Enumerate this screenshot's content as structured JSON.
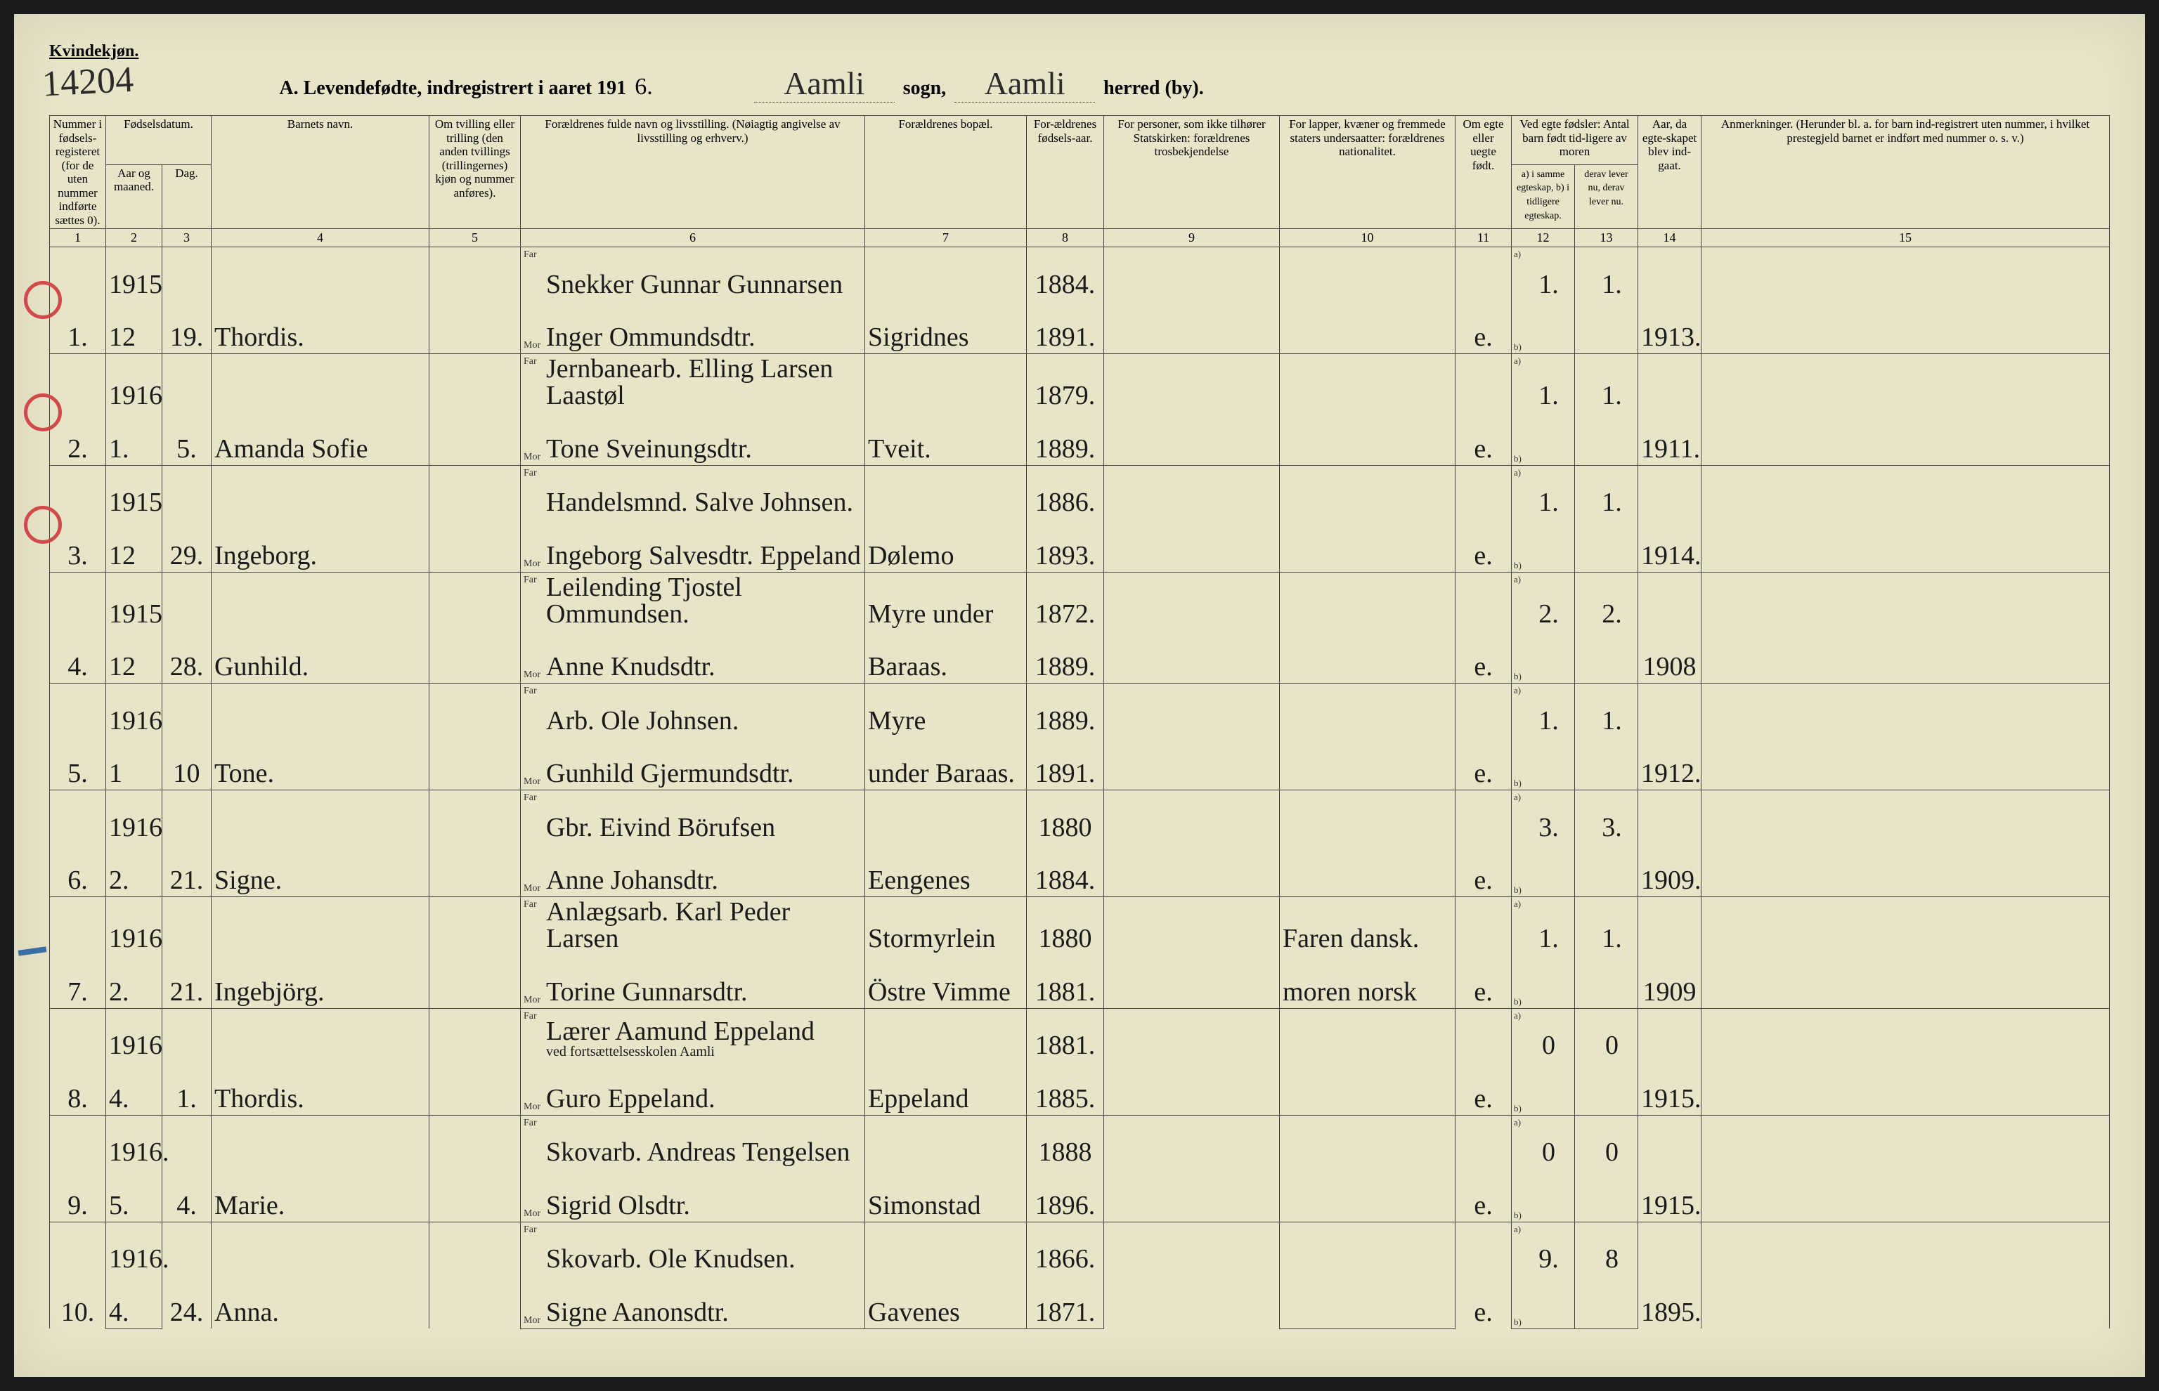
{
  "header": {
    "gender_label": "Kvindekjøn.",
    "handwritten_number": "14204",
    "title_prefix": "A.  Levendefødte, indregistrert i aaret 191",
    "year_suffix": "6.",
    "sogn_value": "Aamli",
    "sogn_label": "sogn,",
    "herred_value": "Aamli",
    "herred_label": "herred (by)."
  },
  "columns": {
    "c1": "Nummer i fødsels-registeret (for de uten nummer indførte sættes 0).",
    "c2_top": "Fødselsdatum.",
    "c2a": "Aar og maaned.",
    "c2b": "Dag.",
    "c4": "Barnets navn.",
    "c5": "Om tvilling eller trilling (den anden tvillings (trillingernes) kjøn og nummer anføres).",
    "c6": "Forældrenes fulde navn og livsstilling. (Nøiagtig angivelse av livsstilling og erhverv.)",
    "c7": "Forældrenes bopæl.",
    "c8": "For-ældrenes fødsels-aar.",
    "c9": "For personer, som ikke tilhører Statskirken: forældrenes trosbekjendelse",
    "c10": "For lapper, kvæner og fremmede staters undersaatter: forældrenes nationalitet.",
    "c11": "Om egte eller uegte født.",
    "c12_top": "Ved egte fødsler: Antal barn født tid-ligere av moren",
    "c12a": "a) i samme egteskap, b) i tidligere egteskap.",
    "c12b": "derav lever nu, derav lever nu.",
    "c14": "Aar, da egte-skapet blev ind-gaat.",
    "c15": "Anmerkninger. (Herunder bl. a. for barn ind-registrert uten nummer, i hvilket prestegjeld barnet er indført med nummer o. s. v.)",
    "far": "Far",
    "mor": "Mor",
    "a": "a)",
    "b": "b)",
    "nums": [
      "1",
      "2",
      "3",
      "4",
      "5",
      "6",
      "7",
      "8",
      "9",
      "10",
      "11",
      "12",
      "13",
      "14",
      "15"
    ]
  },
  "rows": [
    {
      "num": "1.",
      "year": "1915",
      "month": "12",
      "day": "19.",
      "name": "Thordis.",
      "far": "Snekker Gunnar Gunnarsen",
      "mor": "Inger Ommundsdtr.",
      "bopel": "Sigridnes",
      "far_aar": "1884.",
      "mor_aar": "1891.",
      "egte": "e.",
      "a": "1.",
      "b": "1.",
      "marriage": "1913.",
      "circle": true
    },
    {
      "num": "2.",
      "year": "1916",
      "month": "1.",
      "day": "5.",
      "name": "Amanda Sofie",
      "far": "Jernbanearb. Elling Larsen Laastøl",
      "mor": "Tone Sveinungsdtr.",
      "bopel": "Tveit.",
      "far_aar": "1879.",
      "mor_aar": "1889.",
      "egte": "e.",
      "a": "1.",
      "b": "1.",
      "marriage": "1911."
    },
    {
      "num": "3.",
      "year": "1915",
      "month": "12",
      "day": "29.",
      "name": "Ingeborg.",
      "far": "Handelsmnd. Salve Johnsen.",
      "mor": "Ingeborg Salvesdtr. Eppeland",
      "bopel": "Dølemo",
      "far_aar": "1886.",
      "mor_aar": "1893.",
      "egte": "e.",
      "a": "1.",
      "b": "1.",
      "marriage": "1914.",
      "circle": true
    },
    {
      "num": "4.",
      "year": "1915",
      "month": "12",
      "day": "28.",
      "name": "Gunhild.",
      "far": "Leilending Tjostel Ommundsen.",
      "mor": "Anne Knudsdtr.",
      "bopel_far": "Myre under",
      "bopel": "Baraas.",
      "far_aar": "1872.",
      "mor_aar": "1889.",
      "egte": "e.",
      "a": "2.",
      "b": "2.",
      "marriage": "1908",
      "circle": true
    },
    {
      "num": "5.",
      "year": "1916",
      "month": "1",
      "day": "10",
      "name": "Tone.",
      "far": "Arb. Ole Johnsen.",
      "mor": "Gunhild Gjermundsdtr.",
      "bopel_far": "Myre",
      "bopel": "under Baraas.",
      "far_aar": "1889.",
      "mor_aar": "1891.",
      "egte": "e.",
      "a": "1.",
      "b": "1.",
      "marriage": "1912."
    },
    {
      "num": "6.",
      "year": "1916",
      "month": "2.",
      "day": "21.",
      "name": "Signe.",
      "far": "Gbr. Eivind Börufsen",
      "mor": "Anne Johansdtr.",
      "bopel": "Eengenes",
      "far_aar": "1880",
      "mor_aar": "1884.",
      "egte": "e.",
      "a": "3.",
      "b": "3.",
      "marriage": "1909."
    },
    {
      "num": "7.",
      "year": "1916",
      "month": "2.",
      "day": "21.",
      "name": "Ingebjörg.",
      "far": "Anlægsarb. Karl Peder Larsen",
      "mor": "Torine Gunnarsdtr.",
      "bopel_far": "Stormyrlein",
      "bopel": "Östre Vimme",
      "far_aar": "1880",
      "mor_aar": "1881.",
      "nat_far": "Faren dansk.",
      "nat_mor": "moren norsk",
      "egte": "e.",
      "a": "1.",
      "b": "1.",
      "marriage": "1909"
    },
    {
      "num": "8.",
      "year": "1916",
      "month": "4.",
      "day": "1.",
      "name": "Thordis.",
      "far": "Lærer Aamund Eppeland",
      "far_note": "ved fortsættelsesskolen Aamli",
      "mor": "Guro Eppeland.",
      "bopel": "Eppeland",
      "far_aar": "1881.",
      "mor_aar": "1885.",
      "egte": "e.",
      "a": "0",
      "b": "0",
      "marriage": "1915.",
      "bluemark": true
    },
    {
      "num": "9.",
      "year": "1916.",
      "month": "5.",
      "day": "4.",
      "name": "Marie.",
      "far": "Skovarb. Andreas Tengelsen",
      "mor": "Sigrid Olsdtr.",
      "bopel": "Simonstad",
      "far_aar": "1888",
      "mor_aar": "1896.",
      "egte": "e.",
      "a": "0",
      "b": "0",
      "marriage": "1915."
    },
    {
      "num": "10.",
      "year": "1916.",
      "month": "4.",
      "day": "24.",
      "name": "Anna.",
      "far": "Skovarb. Ole Knudsen.",
      "mor": "Signe Aanonsdtr.",
      "bopel": "Gavenes",
      "far_aar": "1866.",
      "mor_aar": "1871.",
      "egte": "e.",
      "a": "9.",
      "b": "8",
      "marriage": "1895."
    }
  ],
  "colors": {
    "paper": "#e8e4c8",
    "ink": "#1a1a1a",
    "red": "#d04a4a",
    "blue": "#3a6ea5",
    "rule": "#444"
  }
}
